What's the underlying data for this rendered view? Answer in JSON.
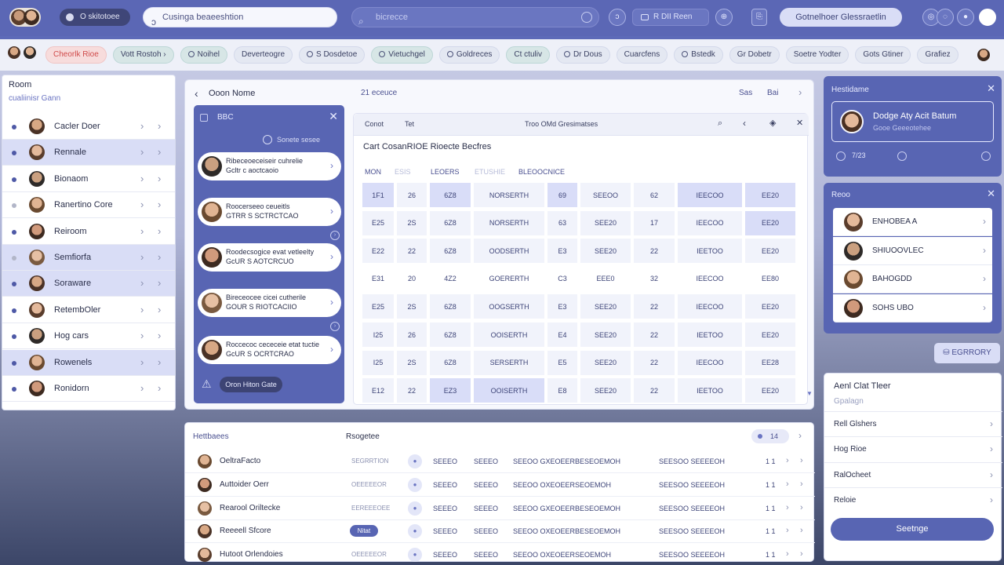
{
  "topbar": {
    "workspace": "O skitotoee",
    "search_main": "Cusinga beaeeshtion",
    "search_secondary": "bicrecce",
    "tb_buttons": [
      "ↄ",
      "⊕",
      "⎘"
    ],
    "rect_btn": "R DII Reen",
    "global_btn": "Gotnelhoer Glessraetlin",
    "right_icons": [
      "◎",
      "◌",
      "●"
    ]
  },
  "chips": [
    {
      "label": "Cheorlk Rioe",
      "style": "red"
    },
    {
      "label": "Vott Rostoh ›",
      "style": "teal"
    },
    {
      "label": "Noihel",
      "style": "teal",
      "icon": true
    },
    {
      "label": "Deverteogre",
      "style": "plain"
    },
    {
      "label": "S Dosdetoe",
      "style": "plain",
      "icon": true
    },
    {
      "label": "Vietuchgel",
      "style": "teal",
      "icon": true
    },
    {
      "label": "Goldreces",
      "style": "plain",
      "icon": true
    },
    {
      "label": "Ct ctuliv",
      "style": "teal"
    },
    {
      "label": "Dr Dous",
      "style": "plain",
      "icon": true
    },
    {
      "label": "Cuarcfens",
      "style": "plain"
    },
    {
      "label": "Bstedk",
      "style": "plain",
      "icon": true
    },
    {
      "label": "Gr Dobetr",
      "style": "plain"
    },
    {
      "label": "Soetre Yodter",
      "style": "plain"
    },
    {
      "label": "Gots Gtiner",
      "style": "plain"
    },
    {
      "label": "Grafiez",
      "style": "plain"
    }
  ],
  "rooms": {
    "header": "Room",
    "subheader": "cualiinisr Gann",
    "items": [
      {
        "name": "Cacler Doer",
        "hl": false,
        "grey": false
      },
      {
        "name": "Rennale",
        "hl": true,
        "grey": false
      },
      {
        "name": "Bionaom",
        "hl": false,
        "grey": false
      },
      {
        "name": "Ranertino Core",
        "hl": false,
        "grey": true
      },
      {
        "name": "Reiroom",
        "hl": false,
        "grey": false
      },
      {
        "name": "Semfiorfa",
        "hl": true,
        "grey": true
      },
      {
        "name": "Soraware",
        "hl": true,
        "grey": false
      },
      {
        "name": "RetembOler",
        "hl": false,
        "grey": false
      },
      {
        "name": "Hog cars",
        "hl": false,
        "grey": false
      },
      {
        "name": "Rowenels",
        "hl": true,
        "grey": false
      },
      {
        "name": "Ronidorn",
        "hl": false,
        "grey": false
      }
    ]
  },
  "main": {
    "title": "Ooon Nome",
    "tabs": "21  eceuce",
    "right1": "Sas",
    "right2": "Bai"
  },
  "messages": {
    "title": "BBC",
    "filter": "Sonete sesee",
    "cards": [
      {
        "l1": "Ribeceoeceiseir cuhrelie",
        "l2": "Gcltr c aoctcaoio"
      },
      {
        "l1": "Roocerseeo ceueitls",
        "l2": "GTRR S SCTRCTCAO"
      },
      {
        "l1": "Roodecsogice evat vetleelty",
        "l2": "GcUR S AOTCRCUO"
      },
      {
        "l1": "Bireceocee cicei cutherile",
        "l2": "GOUR S RIOTCACIIO"
      },
      {
        "l1": "Roccecoc cececeie etat tuctie",
        "l2": "GcUR S OCRTCRAO"
      }
    ],
    "action": "Oron Hiton Gate"
  },
  "table": {
    "toolbar": [
      "Conot",
      "Tet",
      "Troo OMd Gresimatses"
    ],
    "title": "Cart CosanRIOE Rioecte Becfres",
    "col_headers": [
      {
        "t": "MON",
        "dim": false
      },
      {
        "t": "ESIS",
        "dim": true
      },
      {
        "t": "LEOERS",
        "dim": false
      },
      {
        "t": "ETUSHIE",
        "dim": true
      },
      {
        "t": "BLEOOCNICE",
        "dim": false
      }
    ],
    "rows": [
      [
        "1F1",
        "26",
        "6Z8",
        "NORSERTH",
        "69",
        "SEEOO",
        "62",
        "IEECOO",
        "EE20"
      ],
      [
        "E25",
        "2S",
        "6Z8",
        "NORSERTH",
        "63",
        "SEE20",
        "17",
        "IEECOO",
        "EE20"
      ],
      [
        "E22",
        "22",
        "6Z8",
        "OODSERTH",
        "E3",
        "SEE20",
        "22",
        "IEETOO",
        "EE20"
      ],
      [
        "E31",
        "20",
        "4Z2",
        "GOERERTH",
        "C3",
        "EEE0",
        "32",
        "IEECOO",
        "EE80"
      ],
      [
        "E25",
        "2S",
        "6Z8",
        "OOGSERTH",
        "E3",
        "SEE20",
        "22",
        "IEECOO",
        "EE20"
      ],
      [
        "I25",
        "26",
        "6Z8",
        "OOISERTH",
        "E4",
        "SEE20",
        "22",
        "IEETOO",
        "EE20"
      ],
      [
        "I25",
        "2S",
        "6Z8",
        "SERSERTH",
        "E5",
        "SEE20",
        "22",
        "IEECOO",
        "EE28"
      ],
      [
        "E12",
        "22",
        "EZ3",
        "OOISERTH",
        "E8",
        "SEE20",
        "22",
        "IEETOO",
        "EE20"
      ]
    ]
  },
  "profile": {
    "header": "Hestidame",
    "name": "Dodge Aty Acit Batum",
    "sub": "Gooe Geeeotehee",
    "count": "7/23"
  },
  "members": {
    "header": "Reoo",
    "items": [
      "ENHOBEA A",
      "SHIUOOVLEC",
      "BAHOGDD",
      "SOHS UBO"
    ]
  },
  "export_label": "⛁ EGRRORY",
  "settings": {
    "header": "Aenl Clat Tleer",
    "sub": "Gpalagn",
    "items": [
      "Rell Glshers",
      "Hog Rioe",
      "RalOcheet",
      "Reloie"
    ],
    "save": "Seetnge"
  },
  "bottom": {
    "header": "Hettbaees",
    "header2": "Rsogetee",
    "page": "14",
    "rows": [
      {
        "name": "OeltraFacto",
        "c1": "SEGRRTION",
        "badge": "",
        "c2": "SEEEO",
        "c3": "SEEEO",
        "c4": "SEEOO GXEOEERBESEOEMOH",
        "c5": "SEESOO SEEEEOH",
        "c6": "1 1"
      },
      {
        "name": "Auttoider Oerr",
        "c1": "OEEEEEOR",
        "badge": "",
        "c2": "SEEEO",
        "c3": "SEEEO",
        "c4": "SEEOO OXEOEERSEOEMOH",
        "c5": "SEESOO SEEEEOH",
        "c6": "1 1"
      },
      {
        "name": "Rearool Oriltecke",
        "c1": "EEREEEOEE",
        "badge": "",
        "c2": "SEEEO",
        "c3": "SEEEO",
        "c4": "SEEOO GXEOEERBESEOEMOH",
        "c5": "SEESOO SEEEEOH",
        "c6": "1 1"
      },
      {
        "name": "Reeeell Sfcore",
        "c1": "",
        "badge": "Nitat",
        "c2": "SEEEO",
        "c3": "SEEEO",
        "c4": "SEEOO OXEOEERBESEOEMOH",
        "c5": "SEESOO SEEEEOH",
        "c6": "1 1"
      },
      {
        "name": "Hutoot Orlendoies",
        "c1": "OEEEEEOR",
        "badge": "",
        "c2": "SEEEO",
        "c3": "SEEEO",
        "c4": "SEEOO OXEOEERSEOEMOH",
        "c5": "SEESOO SEEEEOH",
        "c6": "1 1"
      }
    ]
  },
  "colors": {
    "accent": "#5865b3",
    "topbar": "#5b67b5",
    "highlight": "#d9ddf6",
    "warn": "#d04b4b"
  }
}
